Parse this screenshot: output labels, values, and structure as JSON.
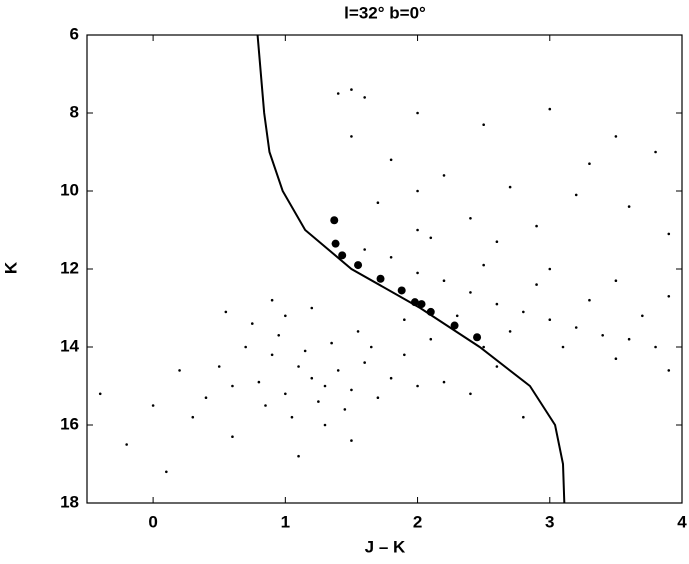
{
  "chart_data": {
    "type": "scatter",
    "title": "l=32°   b=0°",
    "x_label": "J – K",
    "y_label": "K",
    "xlim": [
      -0.5,
      4
    ],
    "ylim": [
      18,
      6
    ],
    "xticks": [
      0,
      1,
      2,
      3,
      4
    ],
    "yticks": [
      6,
      8,
      10,
      12,
      14,
      16,
      18
    ],
    "series": [
      {
        "type": "scatter",
        "color": "#000000",
        "marker_size": 1.3,
        "x": [
          1.2,
          1.1,
          1.3,
          0.9,
          1.4,
          1.0,
          1.5,
          0.8,
          1.6,
          1.25,
          0.7,
          1.35,
          1.7,
          0.95,
          1.45,
          1.15,
          1.8,
          0.6,
          1.05,
          2.0,
          0.5,
          1.9,
          0.75,
          1.55,
          2.2,
          0.4,
          1.3,
          0.3,
          2.4,
          0.85,
          1.65,
          1.0,
          2.1,
          0.2,
          1.2,
          2.6,
          -0.2,
          0.0,
          0.1,
          -0.4,
          0.6,
          1.5,
          2.8,
          1.1,
          0.9,
          0.55,
          1.6,
          1.8,
          2.0,
          2.2,
          2.4,
          2.6,
          2.8,
          3.0,
          3.2,
          3.4,
          3.6,
          3.8,
          2.1,
          2.5,
          2.9,
          3.3,
          3.7,
          2.3,
          2.7,
          3.1,
          3.5,
          3.9,
          1.9,
          2.5,
          3.0,
          3.5,
          2.0,
          2.6,
          3.9,
          1.4,
          1.5,
          1.6,
          2.0,
          2.5,
          3.0,
          3.5,
          3.8,
          1.8,
          2.2,
          2.7,
          3.2,
          3.6,
          1.7,
          2.4,
          2.9,
          3.9,
          1.5,
          3.3,
          2.0
        ],
        "y": [
          14.8,
          14.5,
          15.0,
          14.2,
          14.6,
          15.2,
          15.1,
          14.9,
          14.4,
          15.4,
          14.0,
          13.9,
          15.3,
          13.7,
          15.6,
          14.1,
          14.8,
          15.0,
          15.8,
          15.0,
          14.5,
          14.2,
          13.4,
          13.6,
          14.9,
          15.3,
          16.0,
          15.8,
          15.2,
          15.5,
          14.0,
          13.2,
          13.8,
          14.6,
          13.0,
          14.5,
          16.5,
          15.5,
          17.2,
          15.2,
          16.3,
          16.4,
          15.8,
          16.8,
          12.8,
          13.1,
          11.5,
          11.7,
          12.1,
          12.3,
          12.6,
          12.9,
          13.1,
          13.3,
          13.5,
          13.7,
          13.8,
          14.0,
          11.2,
          11.9,
          12.4,
          12.8,
          13.2,
          13.2,
          13.6,
          14.0,
          14.3,
          14.6,
          13.3,
          14.0,
          12.0,
          12.3,
          11.0,
          11.3,
          12.7,
          7.5,
          7.4,
          7.6,
          8.0,
          8.3,
          7.9,
          8.6,
          9.0,
          9.2,
          9.6,
          9.9,
          10.1,
          10.4,
          10.3,
          10.7,
          10.9,
          11.1,
          8.6,
          9.3,
          10.0
        ]
      },
      {
        "type": "scatter",
        "color": "#000000",
        "marker_size": 4,
        "x": [
          1.37,
          1.38,
          1.43,
          1.55,
          1.72,
          1.88,
          1.98,
          2.03,
          2.1,
          2.28,
          2.45
        ],
        "y": [
          10.75,
          11.35,
          11.65,
          11.9,
          12.25,
          12.55,
          12.85,
          12.9,
          13.1,
          13.45,
          13.75
        ]
      },
      {
        "type": "line",
        "color": "#000000",
        "x": [
          0.79,
          0.84,
          0.88,
          0.98,
          1.15,
          1.5,
          2.02,
          2.47,
          2.85,
          3.04,
          3.1,
          3.11
        ],
        "y": [
          6,
          8,
          9,
          10,
          11,
          12,
          13,
          14,
          15,
          16,
          17,
          18
        ]
      }
    ]
  }
}
